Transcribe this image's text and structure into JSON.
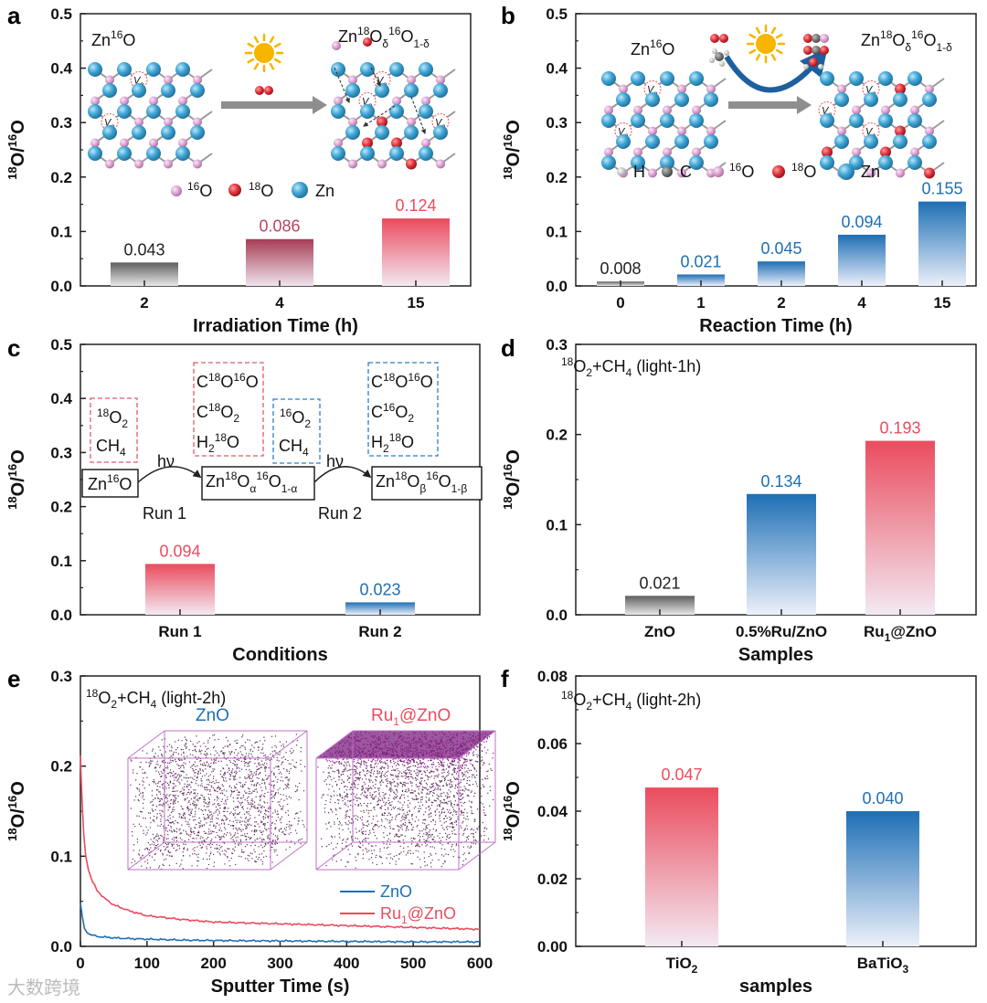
{
  "figure": {
    "panels": [
      "a",
      "b",
      "c",
      "d",
      "e",
      "f"
    ],
    "ylabel_sup1": "18",
    "ylabel_mid": "O/",
    "ylabel_sup2": "16",
    "ylabel_end": "O",
    "watermark": "大数跨境"
  },
  "colors": {
    "grey": "#6b6b6b",
    "red": "#ea4c5e",
    "blue": "#1e6fb5",
    "zn": "#3fa6d6",
    "o16": "#e3a9d8",
    "o18": "#e0303a",
    "arrow": "#8e8e8e",
    "sun": "#f7b500"
  },
  "panel_a": {
    "label": "a",
    "zn16o_main": "Zn",
    "zn16o_sup": "16",
    "zn16o_end": "O",
    "product_main": "Zn",
    "product_sup1": "18",
    "product_o1": "O",
    "product_sub1": "δ",
    "product_sup2": "16",
    "product_o2": "O",
    "product_sub2": "1-δ",
    "vac_v": "V",
    "vac_sub": "o",
    "legend_o16_sup": "16",
    "legend_o16": "O",
    "legend_o18_sup": "18",
    "legend_o18": "O",
    "legend_zn": "Zn"
  },
  "panel_b": {
    "label": "b",
    "zn16o_main": "Zn",
    "zn16o_sup": "16",
    "zn16o_end": "O",
    "product_main": "Zn",
    "product_sup1": "18",
    "product_o1": "O",
    "product_sub1": "δ",
    "product_sup2": "16",
    "product_o2": "O",
    "product_sub2": "1-δ",
    "legend_h": "H",
    "legend_c": "C",
    "legend_o16_sup": "16",
    "legend_o16": "O",
    "legend_o18_sup": "18",
    "legend_o18": "O",
    "legend_zn": "Zn"
  },
  "panel_c": {
    "label": "c",
    "box1_line1_sup": "18",
    "box1_line1": "O",
    "box1_line1_sub": "2",
    "box1_line2": "CH",
    "box1_line2_sub": "4",
    "box2_line1": "C",
    "box2_line1_sup1": "18",
    "box2_line1_mid": "O",
    "box2_line1_sup2": "16",
    "box2_line1_end": "O",
    "box2_line2": "C",
    "box2_line2_sup": "18",
    "box2_line2_mid": "O",
    "box2_line2_sub": "2",
    "box2_line3": "H",
    "box2_line3_sub": "2",
    "box2_line3_sup": "18",
    "box2_line3_end": "O",
    "box3_line1_sup": "16",
    "box3_line1": "O",
    "box3_line1_sub": "2",
    "box3_line2": "CH",
    "box3_line2_sub": "4",
    "box4_line1": "C",
    "box4_line1_sup1": "18",
    "box4_line1_mid": "O",
    "box4_line1_sup2": "16",
    "box4_line1_end": "O",
    "box4_line2": "C",
    "box4_line2_sup": "16",
    "box4_line2_mid": "O",
    "box4_line2_sub": "2",
    "box4_line3": "H",
    "box4_line3_sub": "2",
    "box4_line3_sup": "18",
    "box4_line3_end": "O",
    "state1_main": "Zn",
    "state1_sup": "16",
    "state1_end": "O",
    "state2_main": "Zn",
    "state2_sup1": "18",
    "state2_o1": "O",
    "state2_sub1": "α",
    "state2_sup2": "16",
    "state2_o2": "O",
    "state2_sub2": "1-α",
    "state3_main": "Zn",
    "state3_sup1": "18",
    "state3_o1": "O",
    "state3_sub1": "β",
    "state3_sup2": "16",
    "state3_o2": "O",
    "state3_sub2": "1-β",
    "hv1": "hν",
    "hv2": "hν",
    "run1": "Run 1",
    "run2": "Run 2"
  },
  "panel_d": {
    "label": "d",
    "cond_sup": "18",
    "cond_o": "O",
    "cond_sub": "2",
    "cond_rest": "+CH",
    "cond_sub2": "4",
    "cond_end": " (light-1h)"
  },
  "panel_e": {
    "label": "e",
    "cond_sup": "18",
    "cond_o": "O",
    "cond_sub": "2",
    "cond_rest": "+CH",
    "cond_sub2": "4",
    "cond_end": " (light-2h)",
    "cube1_title": "ZnO",
    "cube2_title_main": "Ru",
    "cube2_title_sub": "1",
    "cube2_title_end": "@ZnO",
    "legend1": "ZnO",
    "legend2_main": "Ru",
    "legend2_sub": "1",
    "legend2_end": "@ZnO"
  },
  "panel_f": {
    "label": "f",
    "cond_sup": "18",
    "cond_o": "O",
    "cond_sub": "2",
    "cond_rest": "+CH",
    "cond_sub2": "4",
    "cond_end": " (light-2h)"
  },
  "chart_data": [
    {
      "id": "a",
      "type": "bar",
      "xlabel": "Irradiation Time (h)",
      "ylabel": "18O/16O",
      "categories": [
        "2",
        "4",
        "15"
      ],
      "values": [
        0.043,
        0.086,
        0.124
      ],
      "labels": [
        "0.043",
        "0.086",
        "0.124"
      ],
      "colors": [
        "grey",
        "red",
        "red"
      ],
      "ylim": [
        0,
        0.5
      ],
      "yticks": [
        "0.0",
        "0.1",
        "0.2",
        "0.3",
        "0.4",
        "0.5"
      ]
    },
    {
      "id": "b",
      "type": "bar",
      "xlabel": "Reaction Time (h)",
      "ylabel": "18O/16O",
      "categories": [
        "0",
        "1",
        "2",
        "4",
        "15"
      ],
      "values": [
        0.008,
        0.021,
        0.045,
        0.094,
        0.155
      ],
      "labels": [
        "0.008",
        "0.021",
        "0.045",
        "0.094",
        "0.155"
      ],
      "colors": [
        "grey",
        "blue",
        "blue",
        "blue",
        "blue"
      ],
      "ylim": [
        0,
        0.5
      ],
      "yticks": [
        "0.0",
        "0.1",
        "0.2",
        "0.3",
        "0.4",
        "0.5"
      ]
    },
    {
      "id": "c",
      "type": "bar",
      "xlabel": "Conditions",
      "ylabel": "18O/16O",
      "categories": [
        "Run 1",
        "Run 2"
      ],
      "values": [
        0.094,
        0.023
      ],
      "labels": [
        "0.094",
        "0.023"
      ],
      "colors": [
        "red",
        "blue"
      ],
      "ylim": [
        0,
        0.5
      ],
      "yticks": [
        "0.0",
        "0.1",
        "0.2",
        "0.3",
        "0.4",
        "0.5"
      ]
    },
    {
      "id": "d",
      "type": "bar",
      "xlabel": "Samples",
      "ylabel": "18O/16O",
      "categories": [
        "ZnO",
        "0.5%Ru/ZnO",
        "Ru1@ZnO"
      ],
      "values": [
        0.021,
        0.134,
        0.193
      ],
      "labels": [
        "0.021",
        "0.134",
        "0.193"
      ],
      "colors": [
        "grey",
        "blue",
        "red"
      ],
      "ylim": [
        0,
        0.3
      ],
      "yticks": [
        "0.0",
        "0.1",
        "0.2",
        "0.3"
      ]
    },
    {
      "id": "e",
      "type": "line",
      "xlabel": "Sputter Time (s)",
      "ylabel": "18O/16O",
      "xlim": [
        0,
        600
      ],
      "ylim": [
        0,
        0.3
      ],
      "xticks": [
        "0",
        "100",
        "200",
        "300",
        "400",
        "500",
        "600"
      ],
      "yticks": [
        "0.0",
        "0.1",
        "0.2",
        "0.3"
      ],
      "series": [
        {
          "name": "ZnO",
          "color": "blue",
          "x": [
            0,
            3,
            6,
            10,
            15,
            25,
            40,
            60,
            100,
            150,
            200,
            300,
            400,
            500,
            600
          ],
          "y": [
            0.048,
            0.032,
            0.02,
            0.015,
            0.013,
            0.011,
            0.01,
            0.009,
            0.008,
            0.007,
            0.0065,
            0.006,
            0.0055,
            0.005,
            0.005
          ]
        },
        {
          "name": "Ru1@ZnO",
          "color": "red",
          "x": [
            0,
            2,
            5,
            8,
            12,
            18,
            25,
            35,
            50,
            75,
            100,
            150,
            200,
            300,
            400,
            500,
            600
          ],
          "y": [
            0.212,
            0.17,
            0.125,
            0.1,
            0.085,
            0.072,
            0.062,
            0.054,
            0.046,
            0.039,
            0.034,
            0.03,
            0.027,
            0.025,
            0.023,
            0.021,
            0.019
          ]
        }
      ]
    },
    {
      "id": "f",
      "type": "bar",
      "xlabel": "samples",
      "ylabel": "18O/16O",
      "categories": [
        "TiO2",
        "BaTiO3"
      ],
      "values": [
        0.047,
        0.04
      ],
      "labels": [
        "0.047",
        "0.040"
      ],
      "colors": [
        "red",
        "blue"
      ],
      "ylim": [
        0,
        0.08
      ],
      "yticks": [
        "0.00",
        "0.02",
        "0.04",
        "0.06",
        "0.08"
      ]
    }
  ]
}
